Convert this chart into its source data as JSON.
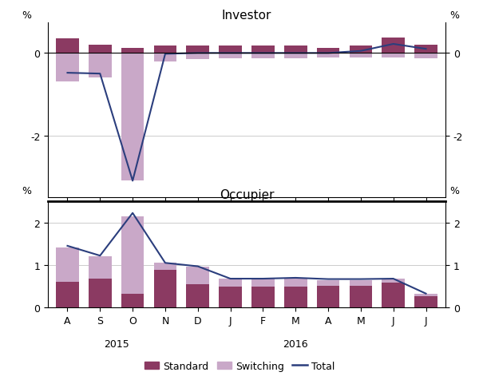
{
  "categories": [
    "A",
    "S",
    "O",
    "N",
    "D",
    "J",
    "F",
    "M",
    "A",
    "M",
    "J",
    "J"
  ],
  "investor_standard": [
    0.35,
    0.2,
    0.12,
    0.18,
    0.18,
    0.18,
    0.18,
    0.18,
    0.12,
    0.18,
    0.38,
    0.2
  ],
  "investor_switching": [
    -0.7,
    -0.6,
    -3.1,
    -0.2,
    -0.15,
    -0.12,
    -0.12,
    -0.12,
    -0.1,
    -0.1,
    -0.1,
    -0.12
  ],
  "investor_total": [
    -0.48,
    -0.5,
    -3.1,
    -0.02,
    0.0,
    0.0,
    0.0,
    0.0,
    0.0,
    0.05,
    0.22,
    0.1
  ],
  "occupier_standard": [
    0.6,
    0.68,
    0.32,
    0.88,
    0.55,
    0.5,
    0.5,
    0.5,
    0.52,
    0.52,
    0.58,
    0.27
  ],
  "occupier_switching": [
    0.82,
    0.52,
    1.82,
    0.18,
    0.42,
    0.18,
    0.18,
    0.2,
    0.13,
    0.13,
    0.1,
    0.05
  ],
  "occupier_total": [
    1.45,
    1.22,
    2.22,
    1.05,
    0.97,
    0.68,
    0.68,
    0.7,
    0.67,
    0.67,
    0.68,
    0.33
  ],
  "standard_color": "#8B3A62",
  "switching_color": "#C9A8C8",
  "total_color": "#2B3E7D",
  "investor_ylim": [
    -3.5,
    0.75
  ],
  "investor_yticks": [
    0.0,
    -2.0
  ],
  "occupier_ylim": [
    0,
    2.5
  ],
  "occupier_yticks": [
    0,
    1,
    2
  ],
  "title_investor": "Investor",
  "title_occupier": "Occupier",
  "legend_labels": [
    "Standard",
    "Switching",
    "Total"
  ],
  "year_labels": [
    [
      "2015",
      1.5
    ],
    [
      "2016",
      7.0
    ]
  ]
}
